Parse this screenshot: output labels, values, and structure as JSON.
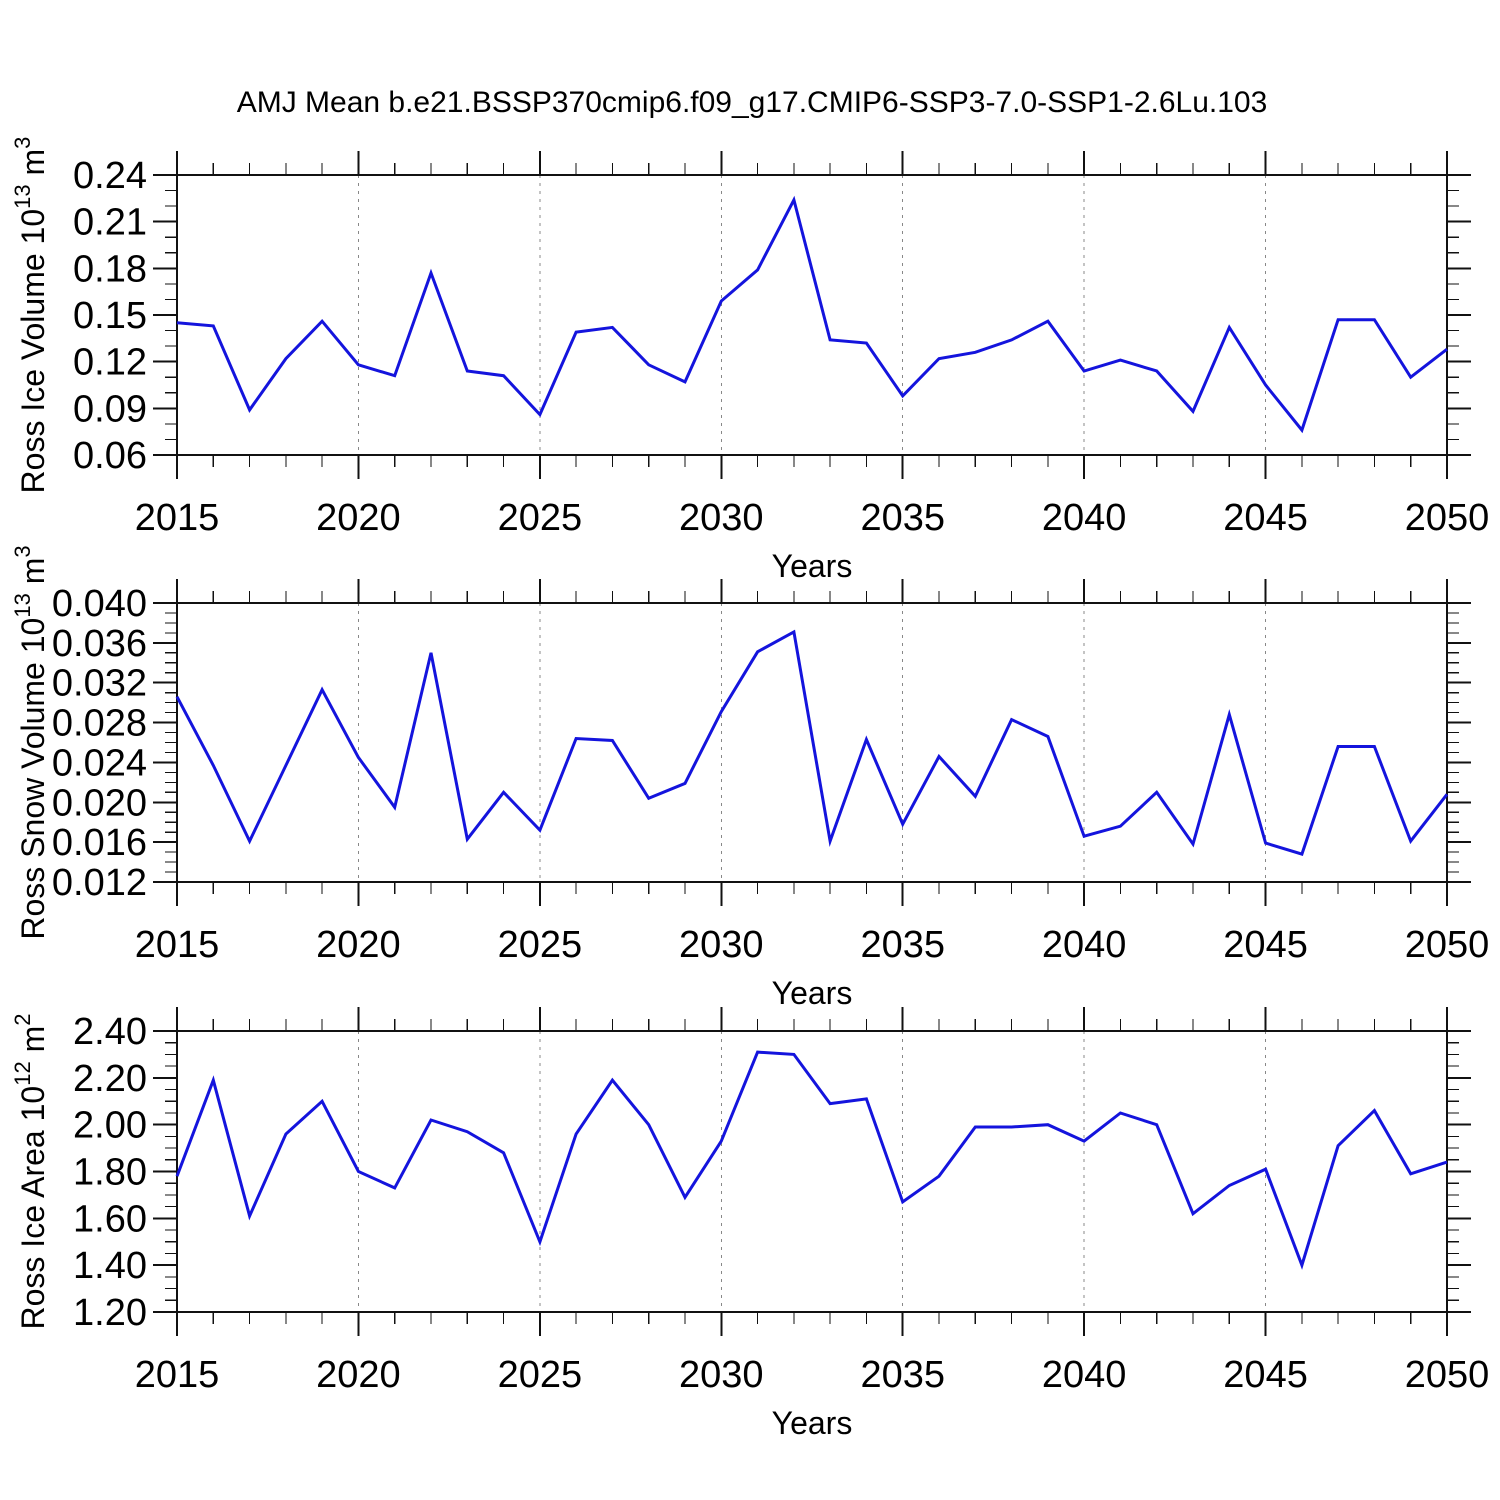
{
  "page": {
    "title": "AMJ Mean b.e21.BSSP370cmip6.f09_g17.CMIP6-SSP3-7.0-SSP1-2.6Lu.103",
    "background": "#ffffff"
  },
  "style": {
    "line_color": "#1414dd",
    "axis_color": "#111111",
    "grid_color": "#888888",
    "text_color": "#000000"
  },
  "chart_data": [
    {
      "id": "ross-ice-volume",
      "type": "line",
      "title": "",
      "xlabel": "Years",
      "ylabel_segments": [
        {
          "text": "Ross Ice Volume 10",
          "sup": false
        },
        {
          "text": "13",
          "sup": true
        },
        {
          "text": " m",
          "sup": false
        },
        {
          "text": "3",
          "sup": true
        }
      ],
      "x": [
        2015,
        2016,
        2017,
        2018,
        2019,
        2020,
        2021,
        2022,
        2023,
        2024,
        2025,
        2026,
        2027,
        2028,
        2029,
        2030,
        2031,
        2032,
        2033,
        2034,
        2035,
        2036,
        2037,
        2038,
        2039,
        2040,
        2041,
        2042,
        2043,
        2044,
        2045,
        2046,
        2047,
        2048,
        2049,
        2050
      ],
      "values": [
        0.145,
        0.143,
        0.089,
        0.122,
        0.146,
        0.118,
        0.111,
        0.177,
        0.114,
        0.111,
        0.086,
        0.139,
        0.142,
        0.118,
        0.107,
        0.159,
        0.179,
        0.224,
        0.134,
        0.132,
        0.098,
        0.122,
        0.126,
        0.134,
        0.146,
        0.114,
        0.121,
        0.114,
        0.088,
        0.142,
        0.105,
        0.076,
        0.147,
        0.147,
        0.11,
        0.128
      ],
      "xlim": [
        2015,
        2050
      ],
      "ylim": [
        0.06,
        0.24
      ],
      "xtick_major": 5,
      "xtick_minor": 1,
      "ytick_major": 0.03,
      "ytick_minor": 0.01,
      "ytick_decimals": 2,
      "xtick_labels": [
        "2015",
        "2020",
        "2025",
        "2030",
        "2035",
        "2040",
        "2045",
        "2050"
      ],
      "ytick_labels": [
        "0.06",
        "0.09",
        "0.12",
        "0.15",
        "0.18",
        "0.21",
        "0.24"
      ],
      "grid_x_dashed": [
        2020,
        2025,
        2030,
        2035,
        2040,
        2045
      ],
      "legend": "none"
    },
    {
      "id": "ross-snow-volume",
      "type": "line",
      "title": "",
      "xlabel": "Years",
      "ylabel_segments": [
        {
          "text": "Ross Snow Volume 10",
          "sup": false
        },
        {
          "text": "13",
          "sup": true
        },
        {
          "text": " m",
          "sup": false
        },
        {
          "text": "3",
          "sup": true
        }
      ],
      "x": [
        2015,
        2016,
        2017,
        2018,
        2019,
        2020,
        2021,
        2022,
        2023,
        2024,
        2025,
        2026,
        2027,
        2028,
        2029,
        2030,
        2031,
        2032,
        2033,
        2034,
        2035,
        2036,
        2037,
        2038,
        2039,
        2040,
        2041,
        2042,
        2043,
        2044,
        2045,
        2046,
        2047,
        2048,
        2049,
        2050
      ],
      "values": [
        0.0306,
        0.0237,
        0.0161,
        0.0237,
        0.0313,
        0.0245,
        0.0195,
        0.035,
        0.0163,
        0.021,
        0.0172,
        0.0264,
        0.0262,
        0.0204,
        0.0219,
        0.0291,
        0.0351,
        0.0371,
        0.0161,
        0.0263,
        0.0178,
        0.0246,
        0.0206,
        0.0283,
        0.0266,
        0.0166,
        0.0176,
        0.021,
        0.0158,
        0.0288,
        0.0159,
        0.0148,
        0.0256,
        0.0256,
        0.0161,
        0.0208
      ],
      "xlim": [
        2015,
        2050
      ],
      "ylim": [
        0.012,
        0.04
      ],
      "xtick_major": 5,
      "xtick_minor": 1,
      "ytick_major": 0.004,
      "ytick_minor": 0.001,
      "ytick_decimals": 3,
      "xtick_labels": [
        "2015",
        "2020",
        "2025",
        "2030",
        "2035",
        "2040",
        "2045",
        "2050"
      ],
      "ytick_labels": [
        "0.012",
        "0.016",
        "0.020",
        "0.024",
        "0.028",
        "0.032",
        "0.036",
        "0.040"
      ],
      "grid_x_dashed": [
        2020,
        2025,
        2030,
        2035,
        2040,
        2045
      ],
      "legend": "none"
    },
    {
      "id": "ross-ice-area",
      "type": "line",
      "title": "",
      "xlabel": "Years",
      "ylabel_segments": [
        {
          "text": "Ross Ice Area 10",
          "sup": false
        },
        {
          "text": "12",
          "sup": true
        },
        {
          "text": " m",
          "sup": false
        },
        {
          "text": "2",
          "sup": true
        }
      ],
      "x": [
        2015,
        2016,
        2017,
        2018,
        2019,
        2020,
        2021,
        2022,
        2023,
        2024,
        2025,
        2026,
        2027,
        2028,
        2029,
        2030,
        2031,
        2032,
        2033,
        2034,
        2035,
        2036,
        2037,
        2038,
        2039,
        2040,
        2041,
        2042,
        2043,
        2044,
        2045,
        2046,
        2047,
        2048,
        2049,
        2050
      ],
      "values": [
        1.78,
        2.19,
        1.61,
        1.96,
        2.1,
        1.8,
        1.73,
        2.02,
        1.97,
        1.88,
        1.5,
        1.96,
        2.19,
        2.0,
        1.69,
        1.93,
        2.31,
        2.3,
        2.09,
        2.11,
        1.67,
        1.78,
        1.99,
        1.99,
        2.0,
        1.93,
        2.05,
        2.0,
        1.62,
        1.74,
        1.81,
        1.4,
        1.91,
        2.06,
        1.79,
        1.84
      ],
      "xlim": [
        2015,
        2050
      ],
      "ylim": [
        1.2,
        2.4
      ],
      "xtick_major": 5,
      "xtick_minor": 1,
      "ytick_major": 0.2,
      "ytick_minor": 0.05,
      "ytick_decimals": 2,
      "xtick_labels": [
        "2015",
        "2020",
        "2025",
        "2030",
        "2035",
        "2040",
        "2045",
        "2050"
      ],
      "ytick_labels": [
        "1.20",
        "1.40",
        "1.60",
        "1.80",
        "2.00",
        "2.20",
        "2.40"
      ],
      "grid_x_dashed": [
        2020,
        2025,
        2030,
        2035,
        2040,
        2045
      ],
      "legend": "none"
    }
  ]
}
